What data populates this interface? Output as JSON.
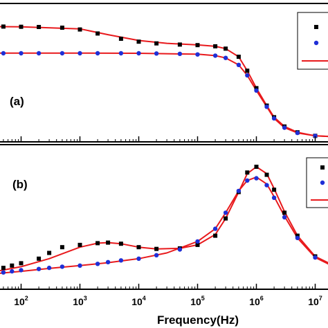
{
  "chart_data": [
    {
      "panel": "(a)",
      "type": "scatter",
      "xscale": "log",
      "xlim": [
        10,
        30000000
      ],
      "series": [
        {
          "marker": "square",
          "color": "#000000",
          "x": [
            20,
            30,
            50,
            100,
            200,
            500,
            1000,
            2000,
            5000,
            10000,
            20000,
            50000,
            100000,
            200000,
            300000,
            500000,
            700000,
            1000000,
            1500000,
            2000000,
            3000000,
            5000000,
            10000000,
            20000000
          ],
          "y": [
            0.98,
            0.985,
            0.98,
            0.978,
            0.976,
            0.97,
            0.955,
            0.92,
            0.875,
            0.85,
            0.835,
            0.825,
            0.82,
            0.81,
            0.79,
            0.72,
            0.6,
            0.45,
            0.3,
            0.2,
            0.12,
            0.07,
            0.04,
            0.03
          ]
        },
        {
          "marker": "circle",
          "color": "#1f2fd6",
          "x": [
            20,
            30,
            50,
            100,
            200,
            500,
            1000,
            2000,
            5000,
            10000,
            20000,
            50000,
            100000,
            200000,
            300000,
            500000,
            700000,
            1000000,
            1500000,
            2000000,
            3000000,
            5000000,
            10000000,
            20000000
          ],
          "y": [
            0.75,
            0.755,
            0.75,
            0.75,
            0.75,
            0.75,
            0.75,
            0.75,
            0.75,
            0.75,
            0.748,
            0.745,
            0.74,
            0.73,
            0.71,
            0.65,
            0.56,
            0.43,
            0.29,
            0.19,
            0.11,
            0.065,
            0.04,
            0.03
          ]
        }
      ],
      "fits": [
        {
          "color": "#e8191c",
          "x": [
            10,
            100,
            1000,
            3000,
            10000,
            30000,
            100000,
            200000,
            300000,
            500000,
            700000,
            1000000,
            1500000,
            2000000,
            3000000,
            5000000,
            10000000,
            30000000
          ],
          "y": [
            0.982,
            0.978,
            0.96,
            0.91,
            0.86,
            0.836,
            0.822,
            0.81,
            0.79,
            0.72,
            0.6,
            0.45,
            0.3,
            0.2,
            0.12,
            0.07,
            0.04,
            0.03
          ]
        },
        {
          "color": "#e8191c",
          "x": [
            10,
            100,
            1000,
            10000,
            100000,
            200000,
            300000,
            500000,
            700000,
            1000000,
            1500000,
            2000000,
            3000000,
            5000000,
            10000000,
            30000000
          ],
          "y": [
            0.752,
            0.752,
            0.752,
            0.75,
            0.742,
            0.73,
            0.71,
            0.65,
            0.56,
            0.43,
            0.29,
            0.19,
            0.11,
            0.065,
            0.04,
            0.03
          ]
        }
      ]
    },
    {
      "panel": "(b)",
      "type": "scatter",
      "xscale": "log",
      "xlim": [
        10,
        30000000
      ],
      "xlabel": "Frequency(Hz)",
      "xticks": [
        {
          "value": 100,
          "base": "10",
          "exp": "2"
        },
        {
          "value": 1000,
          "base": "10",
          "exp": "3"
        },
        {
          "value": 10000,
          "base": "10",
          "exp": "4"
        },
        {
          "value": 100000,
          "base": "10",
          "exp": "5"
        },
        {
          "value": 1000000,
          "base": "10",
          "exp": "6"
        },
        {
          "value": 10000000,
          "base": "10",
          "exp": "7"
        }
      ],
      "series": [
        {
          "marker": "square",
          "color": "#000000",
          "x": [
            20,
            30,
            50,
            70,
            100,
            200,
            300,
            500,
            1000,
            2000,
            3000,
            5000,
            10000,
            20000,
            50000,
            100000,
            200000,
            300000,
            500000,
            700000,
            1000000,
            1500000,
            2000000,
            3000000,
            5000000,
            10000000,
            20000000
          ],
          "y": [
            0.08,
            0.1,
            0.12,
            0.14,
            0.16,
            0.2,
            0.25,
            0.3,
            0.32,
            0.335,
            0.34,
            0.33,
            0.3,
            0.285,
            0.29,
            0.32,
            0.4,
            0.55,
            0.78,
            0.95,
            1.0,
            0.93,
            0.8,
            0.6,
            0.4,
            0.22,
            0.12
          ]
        },
        {
          "marker": "circle",
          "color": "#1f2fd6",
          "x": [
            20,
            30,
            50,
            70,
            100,
            200,
            300,
            500,
            1000,
            2000,
            3000,
            5000,
            10000,
            20000,
            50000,
            100000,
            200000,
            300000,
            500000,
            700000,
            1000000,
            1500000,
            2000000,
            3000000,
            5000000,
            10000000,
            20000000
          ],
          "y": [
            0.06,
            0.07,
            0.08,
            0.09,
            0.1,
            0.11,
            0.12,
            0.13,
            0.14,
            0.155,
            0.17,
            0.185,
            0.2,
            0.23,
            0.28,
            0.35,
            0.46,
            0.6,
            0.79,
            0.88,
            0.9,
            0.84,
            0.73,
            0.56,
            0.38,
            0.21,
            0.11
          ]
        }
      ],
      "fits": [
        {
          "color": "#e8191c",
          "x": [
            10,
            30,
            100,
            300,
            1000,
            2000,
            3000,
            5000,
            10000,
            20000,
            50000,
            100000,
            200000,
            300000,
            500000,
            700000,
            1000000,
            1500000,
            2000000,
            3000000,
            5000000,
            10000000,
            30000000
          ],
          "y": [
            0.05,
            0.08,
            0.13,
            0.2,
            0.3,
            0.335,
            0.34,
            0.33,
            0.3,
            0.285,
            0.29,
            0.32,
            0.41,
            0.55,
            0.78,
            0.94,
            1.0,
            0.94,
            0.81,
            0.61,
            0.4,
            0.22,
            0.1
          ]
        },
        {
          "color": "#e8191c",
          "x": [
            10,
            30,
            100,
            300,
            1000,
            3000,
            10000,
            30000,
            100000,
            200000,
            300000,
            500000,
            700000,
            1000000,
            1500000,
            2000000,
            3000000,
            5000000,
            10000000,
            30000000
          ],
          "y": [
            0.05,
            0.065,
            0.09,
            0.115,
            0.14,
            0.165,
            0.2,
            0.25,
            0.35,
            0.46,
            0.6,
            0.79,
            0.88,
            0.91,
            0.85,
            0.74,
            0.57,
            0.38,
            0.21,
            0.09
          ]
        }
      ]
    }
  ]
}
